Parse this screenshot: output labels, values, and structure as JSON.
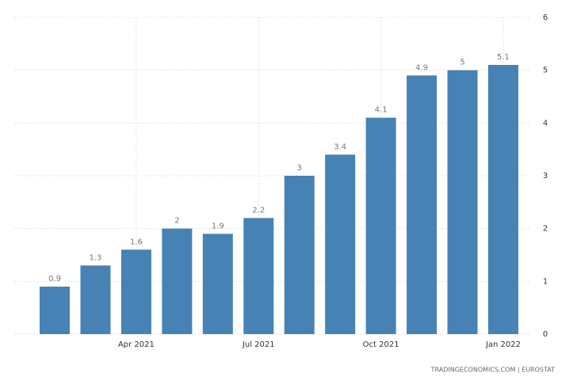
{
  "chart_data": {
    "type": "bar",
    "source": "TRADINGECONOMICS.COM  |  EUROSTAT",
    "categories": [
      null,
      null,
      "Apr 2021",
      null,
      null,
      "Jul 2021",
      null,
      null,
      "Oct 2021",
      null,
      null,
      "Jan 2022"
    ],
    "values": [
      0.9,
      1.3,
      1.6,
      2,
      1.9,
      2.2,
      3,
      3.4,
      4.1,
      4.9,
      5,
      5.1
    ],
    "color": "#4682b4",
    "ylim": [
      0,
      6
    ],
    "yticks": [
      0,
      1,
      2,
      3,
      4,
      5,
      6
    ],
    "grid": true
  }
}
